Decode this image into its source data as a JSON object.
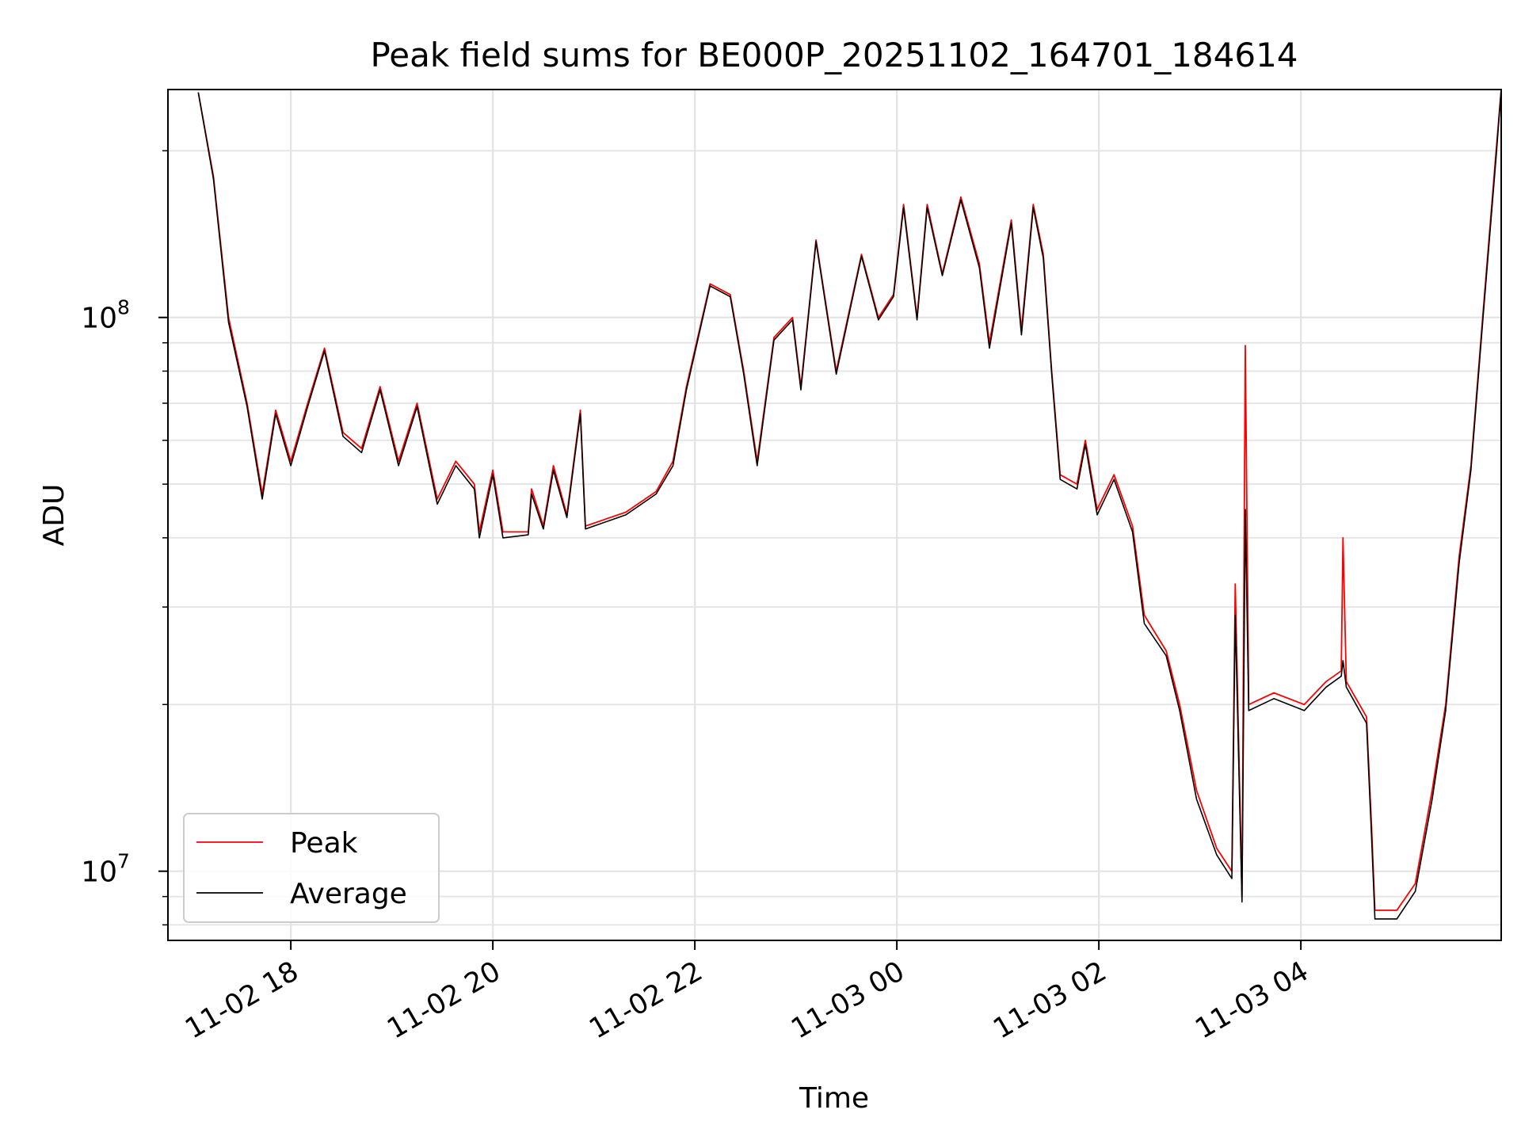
{
  "chart_data": {
    "type": "line",
    "title": "Peak field sums for BE000P_20251102_164701_184614",
    "xlabel": "Time",
    "ylabel": "ADU",
    "y_scale": "log",
    "ylim": [
      7500000,
      258000000
    ],
    "xlim": [
      "2025-11-02 16:47",
      "2025-11-03 05:59"
    ],
    "grid": true,
    "legend": "lower-left",
    "x_ticks": [
      {
        "t": "2025-11-02 18:00",
        "label": "11-02 18"
      },
      {
        "t": "2025-11-02 20:00",
        "label": "11-02 20"
      },
      {
        "t": "2025-11-02 22:00",
        "label": "11-02 22"
      },
      {
        "t": "2025-11-03 00:00",
        "label": "11-03 00"
      },
      {
        "t": "2025-11-03 02:00",
        "label": "11-03 02"
      },
      {
        "t": "2025-11-03 04:00",
        "label": "11-03 04"
      }
    ],
    "y_ticks": [
      {
        "v": 10000000,
        "base": "10",
        "exp": "7"
      },
      {
        "v": 100000000,
        "base": "10",
        "exp": "8"
      }
    ],
    "series": [
      {
        "name": "Peak",
        "color": "#ff0000",
        "points": [
          [
            "2025-11-02 17:05",
            255000000
          ],
          [
            "2025-11-02 17:14",
            180000000
          ],
          [
            "2025-11-02 17:23",
            100000000
          ],
          [
            "2025-11-02 17:34",
            70000000
          ],
          [
            "2025-11-02 17:43",
            48000000
          ],
          [
            "2025-11-02 17:51",
            68000000
          ],
          [
            "2025-11-02 18:00",
            55000000
          ],
          [
            "2025-11-02 18:10",
            70000000
          ],
          [
            "2025-11-02 18:20",
            88000000
          ],
          [
            "2025-11-02 18:31",
            62000000
          ],
          [
            "2025-11-02 18:42",
            58000000
          ],
          [
            "2025-11-02 18:53",
            75000000
          ],
          [
            "2025-11-02 19:04",
            55000000
          ],
          [
            "2025-11-02 19:15",
            70000000
          ],
          [
            "2025-11-02 19:27",
            47000000
          ],
          [
            "2025-11-02 19:38",
            55000000
          ],
          [
            "2025-11-02 19:49",
            50000000
          ],
          [
            "2025-11-02 19:52",
            41000000
          ],
          [
            "2025-11-02 20:00",
            53000000
          ],
          [
            "2025-11-02 20:06",
            41000000
          ],
          [
            "2025-11-02 20:21",
            41000000
          ],
          [
            "2025-11-02 20:23",
            49000000
          ],
          [
            "2025-11-02 20:30",
            42000000
          ],
          [
            "2025-11-02 20:36",
            54000000
          ],
          [
            "2025-11-02 20:44",
            44000000
          ],
          [
            "2025-11-02 20:52",
            68000000
          ],
          [
            "2025-11-02 20:55",
            42000000
          ],
          [
            "2025-11-02 21:19",
            44500000
          ],
          [
            "2025-11-02 21:37",
            48500000
          ],
          [
            "2025-11-02 21:47",
            55000000
          ],
          [
            "2025-11-02 21:55",
            75000000
          ],
          [
            "2025-11-02 22:09",
            115000000
          ],
          [
            "2025-11-02 22:21",
            110000000
          ],
          [
            "2025-11-02 22:29",
            80000000
          ],
          [
            "2025-11-02 22:37",
            55000000
          ],
          [
            "2025-11-02 22:47",
            92000000
          ],
          [
            "2025-11-02 22:58",
            100000000
          ],
          [
            "2025-11-02 23:03",
            75000000
          ],
          [
            "2025-11-02 23:12",
            138000000
          ],
          [
            "2025-11-02 23:24",
            80000000
          ],
          [
            "2025-11-02 23:39",
            130000000
          ],
          [
            "2025-11-02 23:49",
            100000000
          ],
          [
            "2025-11-02 23:58",
            110000000
          ],
          [
            "2025-11-03 00:04",
            160000000
          ],
          [
            "2025-11-03 00:12",
            100000000
          ],
          [
            "2025-11-03 00:18",
            160000000
          ],
          [
            "2025-11-03 00:27",
            120000000
          ],
          [
            "2025-11-03 00:38",
            165000000
          ],
          [
            "2025-11-03 00:49",
            125000000
          ],
          [
            "2025-11-03 00:55",
            90000000
          ],
          [
            "2025-11-03 01:08",
            150000000
          ],
          [
            "2025-11-03 01:14",
            95000000
          ],
          [
            "2025-11-03 01:21",
            160000000
          ],
          [
            "2025-11-03 01:27",
            130000000
          ],
          [
            "2025-11-03 01:32",
            80000000
          ],
          [
            "2025-11-03 01:37",
            52000000
          ],
          [
            "2025-11-03 01:47",
            50000000
          ],
          [
            "2025-11-03 01:52",
            60000000
          ],
          [
            "2025-11-03 01:59",
            45000000
          ],
          [
            "2025-11-03 02:09",
            52000000
          ],
          [
            "2025-11-03 02:20",
            42000000
          ],
          [
            "2025-11-03 02:27",
            29000000
          ],
          [
            "2025-11-03 02:40",
            25000000
          ],
          [
            "2025-11-03 02:48",
            20000000
          ],
          [
            "2025-11-03 02:58",
            14000000
          ],
          [
            "2025-11-03 03:10",
            11000000
          ],
          [
            "2025-11-03 03:19",
            10000000
          ],
          [
            "2025-11-03 03:21",
            33000000
          ],
          [
            "2025-11-03 03:25",
            9000000
          ],
          [
            "2025-11-03 03:27",
            89000000
          ],
          [
            "2025-11-03 03:29",
            20000000
          ],
          [
            "2025-11-03 03:44",
            21000000
          ],
          [
            "2025-11-03 04:02",
            20000000
          ],
          [
            "2025-11-03 04:15",
            22000000
          ],
          [
            "2025-11-03 04:24",
            23000000
          ],
          [
            "2025-11-03 04:25",
            40000000
          ],
          [
            "2025-11-03 04:27",
            22000000
          ],
          [
            "2025-11-03 04:39",
            19000000
          ],
          [
            "2025-11-03 04:42",
            12000000
          ],
          [
            "2025-11-03 04:44",
            8500000
          ],
          [
            "2025-11-03 04:57",
            8500000
          ],
          [
            "2025-11-03 05:08",
            9500000
          ],
          [
            "2025-11-03 05:18",
            14000000
          ],
          [
            "2025-11-03 05:26",
            20000000
          ],
          [
            "2025-11-03 05:34",
            37000000
          ],
          [
            "2025-11-03 05:41",
            54000000
          ],
          [
            "2025-11-03 05:48",
            100000000
          ],
          [
            "2025-11-03 05:56",
            200000000
          ],
          [
            "2025-11-03 05:59",
            258000000
          ]
        ]
      },
      {
        "name": "Average",
        "color": "#000000",
        "points": [
          [
            "2025-11-02 17:05",
            255000000
          ],
          [
            "2025-11-02 17:14",
            178000000
          ],
          [
            "2025-11-02 17:23",
            98000000
          ],
          [
            "2025-11-02 17:34",
            69000000
          ],
          [
            "2025-11-02 17:43",
            47000000
          ],
          [
            "2025-11-02 17:51",
            67000000
          ],
          [
            "2025-11-02 18:00",
            54000000
          ],
          [
            "2025-11-02 18:10",
            69000000
          ],
          [
            "2025-11-02 18:20",
            87000000
          ],
          [
            "2025-11-02 18:31",
            61000000
          ],
          [
            "2025-11-02 18:42",
            57000000
          ],
          [
            "2025-11-02 18:53",
            74000000
          ],
          [
            "2025-11-02 19:04",
            54000000
          ],
          [
            "2025-11-02 19:15",
            69000000
          ],
          [
            "2025-11-02 19:27",
            46000000
          ],
          [
            "2025-11-02 19:38",
            54000000
          ],
          [
            "2025-11-02 19:49",
            49000000
          ],
          [
            "2025-11-02 19:52",
            40000000
          ],
          [
            "2025-11-02 20:00",
            52000000
          ],
          [
            "2025-11-02 20:06",
            40000000
          ],
          [
            "2025-11-02 20:21",
            40500000
          ],
          [
            "2025-11-02 20:23",
            48000000
          ],
          [
            "2025-11-02 20:30",
            41500000
          ],
          [
            "2025-11-02 20:36",
            53000000
          ],
          [
            "2025-11-02 20:44",
            43500000
          ],
          [
            "2025-11-02 20:52",
            67000000
          ],
          [
            "2025-11-02 20:55",
            41500000
          ],
          [
            "2025-11-02 21:19",
            44000000
          ],
          [
            "2025-11-02 21:37",
            48000000
          ],
          [
            "2025-11-02 21:47",
            54000000
          ],
          [
            "2025-11-02 21:55",
            74000000
          ],
          [
            "2025-11-02 22:09",
            114000000
          ],
          [
            "2025-11-02 22:21",
            109000000
          ],
          [
            "2025-11-02 22:29",
            79000000
          ],
          [
            "2025-11-02 22:37",
            54000000
          ],
          [
            "2025-11-02 22:47",
            91000000
          ],
          [
            "2025-11-02 22:58",
            99000000
          ],
          [
            "2025-11-02 23:03",
            74000000
          ],
          [
            "2025-11-02 23:12",
            137000000
          ],
          [
            "2025-11-02 23:24",
            79000000
          ],
          [
            "2025-11-02 23:39",
            129000000
          ],
          [
            "2025-11-02 23:49",
            99000000
          ],
          [
            "2025-11-02 23:58",
            109000000
          ],
          [
            "2025-11-03 00:04",
            158000000
          ],
          [
            "2025-11-03 00:12",
            99000000
          ],
          [
            "2025-11-03 00:18",
            158000000
          ],
          [
            "2025-11-03 00:27",
            119000000
          ],
          [
            "2025-11-03 00:38",
            163000000
          ],
          [
            "2025-11-03 00:49",
            123000000
          ],
          [
            "2025-11-03 00:55",
            88000000
          ],
          [
            "2025-11-03 01:08",
            148000000
          ],
          [
            "2025-11-03 01:14",
            93000000
          ],
          [
            "2025-11-03 01:21",
            158000000
          ],
          [
            "2025-11-03 01:27",
            128000000
          ],
          [
            "2025-11-03 01:32",
            79000000
          ],
          [
            "2025-11-03 01:37",
            51000000
          ],
          [
            "2025-11-03 01:47",
            49000000
          ],
          [
            "2025-11-03 01:52",
            59000000
          ],
          [
            "2025-11-03 01:59",
            44000000
          ],
          [
            "2025-11-03 02:09",
            51000000
          ],
          [
            "2025-11-03 02:20",
            41000000
          ],
          [
            "2025-11-03 02:27",
            28000000
          ],
          [
            "2025-11-03 02:40",
            24500000
          ],
          [
            "2025-11-03 02:48",
            19500000
          ],
          [
            "2025-11-03 02:58",
            13500000
          ],
          [
            "2025-11-03 03:10",
            10700000
          ],
          [
            "2025-11-03 03:19",
            9700000
          ],
          [
            "2025-11-03 03:21",
            29000000
          ],
          [
            "2025-11-03 03:25",
            8800000
          ],
          [
            "2025-11-03 03:27",
            45000000
          ],
          [
            "2025-11-03 03:29",
            19500000
          ],
          [
            "2025-11-03 03:44",
            20500000
          ],
          [
            "2025-11-03 04:02",
            19500000
          ],
          [
            "2025-11-03 04:15",
            21500000
          ],
          [
            "2025-11-03 04:24",
            22500000
          ],
          [
            "2025-11-03 04:25",
            24000000
          ],
          [
            "2025-11-03 04:27",
            21500000
          ],
          [
            "2025-11-03 04:39",
            18500000
          ],
          [
            "2025-11-03 04:42",
            11500000
          ],
          [
            "2025-11-03 04:44",
            8200000
          ],
          [
            "2025-11-03 04:57",
            8200000
          ],
          [
            "2025-11-03 05:08",
            9200000
          ],
          [
            "2025-11-03 05:18",
            13500000
          ],
          [
            "2025-11-03 05:26",
            19500000
          ],
          [
            "2025-11-03 05:34",
            36000000
          ],
          [
            "2025-11-03 05:41",
            53000000
          ],
          [
            "2025-11-03 05:48",
            98000000
          ],
          [
            "2025-11-03 05:56",
            195000000
          ],
          [
            "2025-11-03 05:59",
            258000000
          ]
        ]
      }
    ]
  }
}
